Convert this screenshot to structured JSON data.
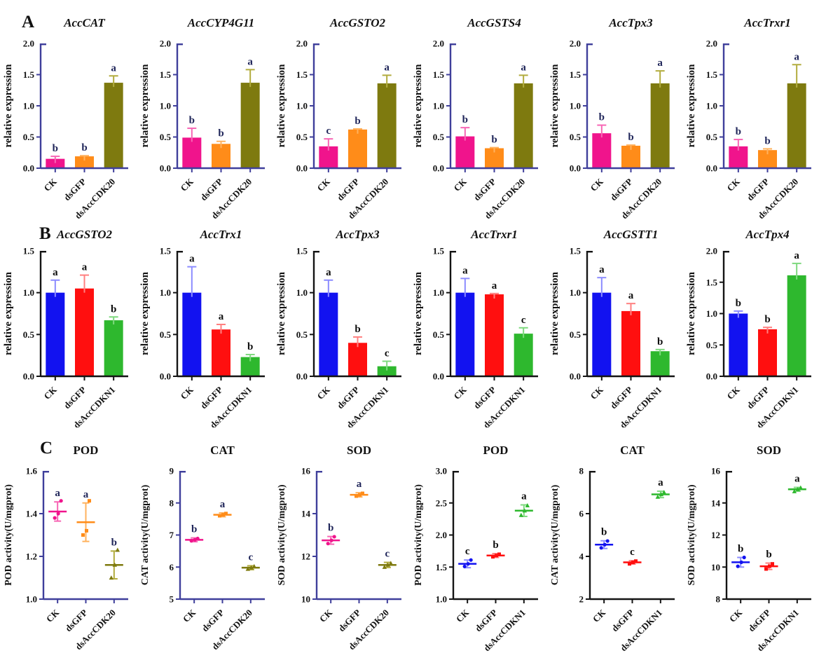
{
  "figure": {
    "section_labels": [
      "A",
      "B",
      "C"
    ]
  },
  "palette": {
    "warm": {
      "axis": "#3F3F9B",
      "letter": "#20265A",
      "tick_text": "#111111",
      "colors": [
        "#F0148C",
        "#FF8C19",
        "#7E7A0F"
      ],
      "err_colors": [
        "#F766B5",
        "#FFB25E",
        "#B2AC3E"
      ]
    },
    "cool": {
      "axis": "#141414",
      "letter": "#0D0D0D",
      "tick_text": "#111111",
      "colors": [
        "#1212F0",
        "#FF0F0F",
        "#2EB82E"
      ],
      "err_colors": [
        "#8C8CFF",
        "#FF8080",
        "#7FD97F"
      ]
    }
  },
  "chart_data": [
    {
      "type": "bar",
      "layout": "A",
      "theme": "warm",
      "title": "AccCAT",
      "italic": true,
      "ylabel": "relative expression",
      "ylim": [
        0.0,
        2.0
      ],
      "yticks": [
        "0.0",
        "0.5",
        "1.0",
        "1.5",
        "2.0"
      ],
      "categories": [
        "CK",
        "dsGFP",
        "dsAccCDK20"
      ],
      "values": [
        0.15,
        0.19,
        1.37
      ],
      "errors": [
        0.04,
        0.01,
        0.11
      ],
      "letters": [
        "b",
        "b",
        "a"
      ]
    },
    {
      "type": "bar",
      "layout": "A",
      "theme": "warm",
      "title": "AccCYP4G11",
      "italic": true,
      "ylabel": "relative expression",
      "ylim": [
        0.0,
        2.0
      ],
      "yticks": [
        "0.0",
        "0.5",
        "1.0",
        "1.5",
        "2.0"
      ],
      "categories": [
        "CK",
        "dsGFP",
        "dsAccCDK20"
      ],
      "values": [
        0.49,
        0.39,
        1.37
      ],
      "errors": [
        0.15,
        0.04,
        0.21
      ],
      "letters": [
        "b",
        "b",
        "a"
      ]
    },
    {
      "type": "bar",
      "layout": "A",
      "theme": "warm",
      "title": "AccGSTO2",
      "italic": true,
      "ylabel": "relative expression",
      "ylim": [
        0.0,
        2.0
      ],
      "yticks": [
        "0.0",
        "0.5",
        "1.0",
        "1.5",
        "2.0"
      ],
      "categories": [
        "CK",
        "dsGFP",
        "dsAccCDK20"
      ],
      "values": [
        0.35,
        0.62,
        1.36
      ],
      "errors": [
        0.12,
        0.01,
        0.13
      ],
      "letters": [
        "c",
        "b",
        "a"
      ]
    },
    {
      "type": "bar",
      "layout": "A",
      "theme": "warm",
      "title": "AccGSTS4",
      "italic": true,
      "ylabel": "relative expression",
      "ylim": [
        0.0,
        2.0
      ],
      "yticks": [
        "0.0",
        "0.5",
        "1.0",
        "1.5",
        "2.0"
      ],
      "categories": [
        "CK",
        "dsGFP",
        "dsAccCDK20"
      ],
      "values": [
        0.51,
        0.32,
        1.36
      ],
      "errors": [
        0.14,
        0.01,
        0.13
      ],
      "letters": [
        "b",
        "b",
        "a"
      ]
    },
    {
      "type": "bar",
      "layout": "A",
      "theme": "warm",
      "title": "AccTpx3",
      "italic": true,
      "ylabel": "relative expression",
      "ylim": [
        0.0,
        2.0
      ],
      "yticks": [
        "0.0",
        "0.5",
        "1.0",
        "1.5",
        "2.0"
      ],
      "categories": [
        "CK",
        "dsGFP",
        "dsAccCDK20"
      ],
      "values": [
        0.56,
        0.36,
        1.36
      ],
      "errors": [
        0.13,
        0.01,
        0.2
      ],
      "letters": [
        "b",
        "b",
        "a"
      ]
    },
    {
      "type": "bar",
      "layout": "A",
      "theme": "warm",
      "title": "AccTrxr1",
      "italic": true,
      "ylabel": "relative expression",
      "ylim": [
        0.0,
        2.0
      ],
      "yticks": [
        "0.0",
        "0.5",
        "1.0",
        "1.5",
        "2.0"
      ],
      "categories": [
        "CK",
        "dsGFP",
        "dsAccCDK20"
      ],
      "values": [
        0.35,
        0.29,
        1.36
      ],
      "errors": [
        0.11,
        0.02,
        0.3
      ],
      "letters": [
        "b",
        "b",
        "a"
      ]
    },
    {
      "type": "bar",
      "layout": "B",
      "theme": "cool",
      "title": "AccGSTO2",
      "italic": true,
      "ylabel": "relative expression",
      "ylim": [
        0.0,
        1.5
      ],
      "yticks": [
        "0.0",
        "0.5",
        "1.0",
        "1.5"
      ],
      "categories": [
        "CK",
        "dsGFP",
        "dsAccCDKN1"
      ],
      "values": [
        1.0,
        1.05,
        0.67
      ],
      "errors": [
        0.15,
        0.16,
        0.04
      ],
      "letters": [
        "a",
        "a",
        "b"
      ]
    },
    {
      "type": "bar",
      "layout": "B",
      "theme": "cool",
      "title": "AccTrx1",
      "italic": true,
      "ylabel": "relative expression",
      "ylim": [
        0.0,
        1.5
      ],
      "yticks": [
        "0.0",
        "0.5",
        "1.0",
        "1.5"
      ],
      "categories": [
        "CK",
        "dsGFP",
        "dsAccCDKN1"
      ],
      "values": [
        1.0,
        0.56,
        0.23
      ],
      "errors": [
        0.31,
        0.06,
        0.03
      ],
      "letters": [
        "a",
        "a",
        "b"
      ]
    },
    {
      "type": "bar",
      "layout": "B",
      "theme": "cool",
      "title": "AccTpx3",
      "italic": true,
      "ylabel": "relative expression",
      "ylim": [
        0.0,
        1.5
      ],
      "yticks": [
        "0.0",
        "0.5",
        "1.0",
        "1.5"
      ],
      "categories": [
        "CK",
        "dsGFP",
        "dsAccCDKN1"
      ],
      "values": [
        1.0,
        0.4,
        0.12
      ],
      "errors": [
        0.15,
        0.07,
        0.06
      ],
      "letters": [
        "a",
        "b",
        "c"
      ]
    },
    {
      "type": "bar",
      "layout": "B",
      "theme": "cool",
      "title": "AccTrxr1",
      "italic": true,
      "ylabel": "relative expression",
      "ylim": [
        0.0,
        1.5
      ],
      "yticks": [
        "0.0",
        "0.5",
        "1.0",
        "1.5"
      ],
      "categories": [
        "CK",
        "dsGFP",
        "dsAccCDKN1"
      ],
      "values": [
        1.0,
        0.98,
        0.51
      ],
      "errors": [
        0.17,
        0.01,
        0.07
      ],
      "letters": [
        "a",
        "a",
        "c"
      ]
    },
    {
      "type": "bar",
      "layout": "B",
      "theme": "cool",
      "title": "AccGSTT1",
      "italic": true,
      "ylabel": "relative expression",
      "ylim": [
        0.0,
        1.5
      ],
      "yticks": [
        "0.0",
        "0.5",
        "1.0",
        "1.5"
      ],
      "categories": [
        "CK",
        "dsGFP",
        "dsAccCDKN1"
      ],
      "values": [
        1.0,
        0.78,
        0.3
      ],
      "errors": [
        0.18,
        0.09,
        0.02
      ],
      "letters": [
        "a",
        "a",
        "b"
      ]
    },
    {
      "type": "bar",
      "layout": "B",
      "theme": "cool",
      "title": "AccTpx4",
      "italic": true,
      "ylabel": "relative expression",
      "ylim": [
        0.0,
        2.0
      ],
      "yticks": [
        "0.0",
        "0.5",
        "1.0",
        "1.5",
        "2.0"
      ],
      "categories": [
        "CK",
        "dsGFP",
        "dsAccCDKN1"
      ],
      "values": [
        1.0,
        0.75,
        1.61
      ],
      "errors": [
        0.04,
        0.03,
        0.19
      ],
      "letters": [
        "b",
        "b",
        "a"
      ]
    },
    {
      "type": "scatter",
      "layout": "C",
      "theme": "warm",
      "title": "POD",
      "italic": false,
      "ylabel": "POD activity(U/mgprot)",
      "ylim": [
        1.0,
        1.6
      ],
      "yticks": [
        "1.0",
        "1.2",
        "1.4",
        "1.6"
      ],
      "categories": [
        "CK",
        "dsGFP",
        "dsAccCDK20"
      ],
      "means": [
        1.41,
        1.36,
        1.16
      ],
      "errors": [
        0.045,
        0.09,
        0.065
      ],
      "points": [
        [
          1.38,
          1.4,
          1.46
        ],
        [
          1.3,
          1.32,
          1.46
        ],
        [
          1.1,
          1.16,
          1.23
        ]
      ],
      "letters": [
        "a",
        "a",
        "b"
      ]
    },
    {
      "type": "scatter",
      "layout": "C",
      "theme": "warm",
      "title": "CAT",
      "italic": false,
      "ylabel": "CAT activity(U/mgprot)",
      "ylim": [
        5,
        9
      ],
      "yticks": [
        "5",
        "6",
        "7",
        "8",
        "9"
      ],
      "categories": [
        "CK",
        "dsGFP",
        "dsAccCDK20"
      ],
      "means": [
        6.85,
        7.63,
        5.98
      ],
      "errors": [
        0.06,
        0.06,
        0.06
      ],
      "points": [
        [
          6.82,
          6.85,
          6.89
        ],
        [
          7.6,
          7.63,
          7.67
        ],
        [
          5.94,
          5.98,
          6.02
        ]
      ],
      "letters": [
        "b",
        "a",
        "c"
      ]
    },
    {
      "type": "scatter",
      "layout": "C",
      "theme": "warm",
      "title": "SOD",
      "italic": false,
      "ylabel": "SOD activity(U/mgprot)",
      "ylim": [
        10,
        16
      ],
      "yticks": [
        "10",
        "12",
        "14",
        "16"
      ],
      "categories": [
        "CK",
        "dsGFP",
        "dsAccCDK20"
      ],
      "means": [
        12.75,
        14.88,
        11.6
      ],
      "errors": [
        0.18,
        0.1,
        0.12
      ],
      "points": [
        [
          12.6,
          12.75,
          12.92
        ],
        [
          14.82,
          14.88,
          14.95
        ],
        [
          11.5,
          11.6,
          11.68
        ]
      ],
      "letters": [
        "b",
        "a",
        "c"
      ]
    },
    {
      "type": "scatter",
      "layout": "C",
      "theme": "cool",
      "title": "POD",
      "italic": false,
      "ylabel": "POD activity(U/mgprot)",
      "ylim": [
        1.0,
        3.0
      ],
      "yticks": [
        "1.0",
        "1.5",
        "2.0",
        "2.5",
        "3.0"
      ],
      "categories": [
        "CK",
        "dsGFP",
        "dsAccCDKN1"
      ],
      "means": [
        1.55,
        1.68,
        2.38
      ],
      "errors": [
        0.06,
        0.03,
        0.09
      ],
      "points": [
        [
          1.51,
          1.55,
          1.61
        ],
        [
          1.66,
          1.68,
          1.7
        ],
        [
          2.31,
          2.38,
          2.46
        ]
      ],
      "letters": [
        "c",
        "b",
        "a"
      ]
    },
    {
      "type": "scatter",
      "layout": "C",
      "theme": "cool",
      "title": "CAT",
      "italic": false,
      "ylabel": "CAT activity(U/mgprot)",
      "ylim": [
        2,
        8
      ],
      "yticks": [
        "2",
        "4",
        "6",
        "8"
      ],
      "categories": [
        "CK",
        "dsGFP",
        "dsAccCDKN1"
      ],
      "means": [
        4.55,
        3.72,
        6.9
      ],
      "errors": [
        0.18,
        0.08,
        0.15
      ],
      "points": [
        [
          4.4,
          4.55,
          4.72
        ],
        [
          3.65,
          3.72,
          3.78
        ],
        [
          6.78,
          6.9,
          7.0
        ]
      ],
      "letters": [
        "b",
        "c",
        "a"
      ]
    },
    {
      "type": "scatter",
      "layout": "C",
      "theme": "cool",
      "title": "SOD",
      "italic": false,
      "ylabel": "SOD activity(U/mgprot)",
      "ylim": [
        8,
        16
      ],
      "yticks": [
        "8",
        "10",
        "12",
        "14",
        "16"
      ],
      "categories": [
        "CK",
        "dsGFP",
        "dsAccCDKN1"
      ],
      "means": [
        10.3,
        10.05,
        14.85
      ],
      "errors": [
        0.3,
        0.2,
        0.12
      ],
      "points": [
        [
          10.05,
          10.3,
          10.6
        ],
        [
          9.88,
          10.05,
          10.2
        ],
        [
          14.72,
          14.85,
          14.95
        ]
      ],
      "letters": [
        "b",
        "b",
        "a"
      ]
    }
  ]
}
